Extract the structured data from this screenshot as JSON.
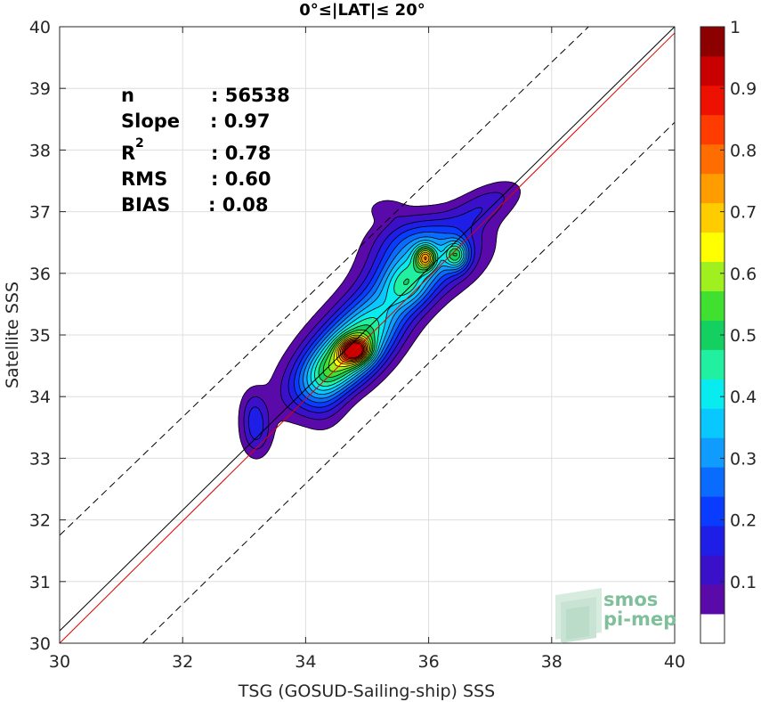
{
  "chart_data": {
    "type": "heatmap",
    "title": "0°≤|LAT|≤ 20°",
    "xlabel": "TSG (GOSUD-Sailing-ship) SSS",
    "ylabel": "Satellite SSS",
    "xlim": [
      30,
      40
    ],
    "ylim": [
      30,
      40
    ],
    "x_ticks": [
      "30",
      "32",
      "34",
      "36",
      "38",
      "40"
    ],
    "y_ticks": [
      "30",
      "31",
      "32",
      "33",
      "34",
      "35",
      "36",
      "37",
      "38",
      "39",
      "40"
    ],
    "grid": true,
    "stats": [
      {
        "label": "n",
        "value": ": 56538"
      },
      {
        "label": "Slope",
        "value": ": 0.97"
      },
      {
        "label": "R",
        "sup": "2",
        "value": ": 0.78"
      },
      {
        "label": "RMS",
        "value": ": 0.60"
      },
      {
        "label": "BIAS",
        "value": ": 0.08"
      }
    ],
    "lines": {
      "identity": {
        "color": "#000000",
        "points": [
          [
            30,
            30.2
          ],
          [
            40,
            40
          ]
        ]
      },
      "regression": {
        "color": "#e00000",
        "points": [
          [
            30,
            30
          ],
          [
            40,
            39.9
          ]
        ]
      },
      "upper_bound": {
        "style": "dashed",
        "points": [
          [
            30,
            31.75
          ],
          [
            38.6,
            40
          ]
        ]
      },
      "lower_bound": {
        "style": "dashed",
        "points": [
          [
            31.35,
            30
          ],
          [
            40,
            38.45
          ]
        ]
      }
    },
    "density_levels": [
      0.05,
      0.1,
      0.15,
      0.2,
      0.25,
      0.3,
      0.35,
      0.4,
      0.45,
      0.5,
      0.55,
      0.6,
      0.65,
      0.7,
      0.75,
      0.8,
      0.85,
      0.9,
      0.95
    ],
    "density_peaks": [
      {
        "x": 34.8,
        "y": 34.75,
        "density": 1.0
      },
      {
        "x": 35.95,
        "y": 36.25,
        "density": 0.6
      },
      {
        "x": 36.45,
        "y": 36.3,
        "density": 0.5
      },
      {
        "x": 35.65,
        "y": 35.8,
        "density": 0.25
      },
      {
        "x": 33.2,
        "y": 33.4,
        "density": 0.1
      }
    ],
    "colorbar": {
      "ticks": [
        "0.1",
        "0.2",
        "0.3",
        "0.4",
        "0.5",
        "0.6",
        "0.7",
        "0.8",
        "0.9",
        "1"
      ],
      "colors": [
        "#ffffff",
        "#5a0aa8",
        "#3a10c8",
        "#1e1ee6",
        "#0a3cff",
        "#0a6cff",
        "#109cff",
        "#08c8ff",
        "#08ecf0",
        "#20f0a0",
        "#14d060",
        "#40e030",
        "#a0f020",
        "#ffff00",
        "#ffcc00",
        "#ff9c00",
        "#ff6c00",
        "#ff3c00",
        "#ee1000",
        "#c80000",
        "#8c0000"
      ]
    }
  },
  "logo": {
    "line1": "smos",
    "line2": "pi-mep"
  }
}
